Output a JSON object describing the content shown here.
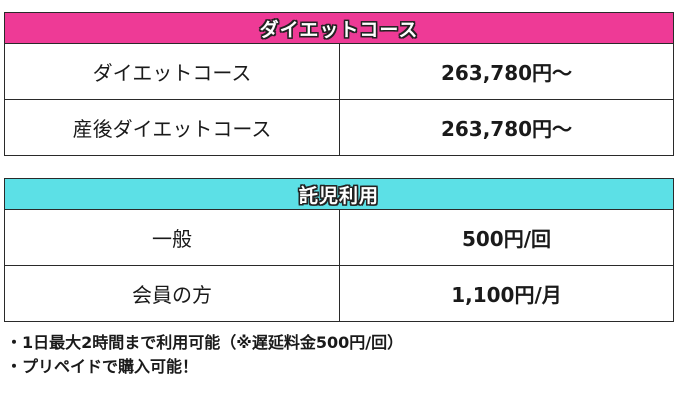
{
  "diet_course": {
    "header": "ダイエットコース",
    "header_color": "#ee3a96",
    "rows": [
      {
        "name": "ダイエットコース",
        "price": "263,780円〜"
      },
      {
        "name": "産後ダイエットコース",
        "price": "263,780円〜"
      }
    ]
  },
  "childcare": {
    "header": "託児利用",
    "header_color": "#5ce0e6",
    "rows": [
      {
        "name": "一般",
        "price": "500円/回"
      },
      {
        "name": "会員の方",
        "price": "1,100円/月"
      }
    ]
  },
  "notes": [
    "・1日最大2時間まで利用可能（※遅延料金500円/回）",
    "・プリペイドで購入可能！"
  ]
}
